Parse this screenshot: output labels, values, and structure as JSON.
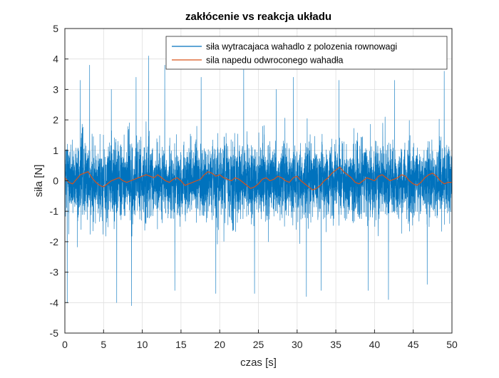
{
  "chart_data": {
    "type": "line",
    "title": "zakłócenie vs reakcja układu",
    "xlabel": "czas [s]",
    "ylabel": "siła [N]",
    "xlim": [
      0,
      50
    ],
    "ylim": [
      -5,
      5
    ],
    "xticks": [
      0,
      5,
      10,
      15,
      20,
      25,
      30,
      35,
      40,
      45,
      50
    ],
    "yticks": [
      -5,
      -4,
      -3,
      -2,
      -1,
      0,
      1,
      2,
      3,
      4,
      5
    ],
    "grid": true,
    "legend_position": "top-right",
    "series": [
      {
        "name": "siła wytracajaca wahadlo z polozenia rownowagi",
        "color": "#0072BD",
        "kind": "noise",
        "time_step": 0.01,
        "typical_band": [
          -1.2,
          1.2
        ],
        "min": -4.1,
        "max": 4.1,
        "peaks": [
          {
            "x": 0.3,
            "y": -4.0
          },
          {
            "x": 2.0,
            "y": 3.3
          },
          {
            "x": 3.2,
            "y": 3.8
          },
          {
            "x": 6.0,
            "y": 3.0
          },
          {
            "x": 6.7,
            "y": -4.0
          },
          {
            "x": 8.6,
            "y": -4.1
          },
          {
            "x": 9.2,
            "y": 3.4
          },
          {
            "x": 10.8,
            "y": 4.1
          },
          {
            "x": 12.9,
            "y": 3.8
          },
          {
            "x": 14.2,
            "y": -3.6
          },
          {
            "x": 17.6,
            "y": 3.4
          },
          {
            "x": 19.5,
            "y": -3.7
          },
          {
            "x": 23.1,
            "y": 3.9
          },
          {
            "x": 24.5,
            "y": -3.7
          },
          {
            "x": 27.3,
            "y": 3.0
          },
          {
            "x": 29.5,
            "y": 3.4
          },
          {
            "x": 31.2,
            "y": -3.8
          },
          {
            "x": 33.1,
            "y": -3.6
          },
          {
            "x": 35.4,
            "y": 3.3
          },
          {
            "x": 39.2,
            "y": -3.6
          },
          {
            "x": 41.8,
            "y": -3.9
          },
          {
            "x": 42.6,
            "y": 3.3
          },
          {
            "x": 46.8,
            "y": -3.4
          },
          {
            "x": 49.0,
            "y": 3.6
          }
        ]
      },
      {
        "name": "sila napedu odwroconego wahadła",
        "color": "#D95319",
        "kind": "line",
        "x": [
          0,
          0.5,
          1,
          1.5,
          2,
          2.5,
          3,
          3.5,
          4,
          4.5,
          5,
          5.5,
          6,
          6.5,
          7,
          7.5,
          8,
          8.5,
          9,
          9.5,
          10,
          10.5,
          11,
          11.5,
          12,
          12.5,
          13,
          13.5,
          14,
          14.5,
          15,
          15.5,
          16,
          16.5,
          17,
          17.5,
          18,
          18.5,
          19,
          19.5,
          20,
          20.5,
          21,
          21.5,
          22,
          22.5,
          23,
          23.5,
          24,
          24.5,
          25,
          25.5,
          26,
          26.5,
          27,
          27.5,
          28,
          28.5,
          29,
          29.5,
          30,
          30.5,
          31,
          31.5,
          32,
          32.5,
          33,
          33.5,
          34,
          34.5,
          35,
          35.5,
          36,
          36.5,
          37,
          37.5,
          38,
          38.5,
          39,
          39.5,
          40,
          40.5,
          41,
          41.5,
          42,
          42.5,
          43,
          43.5,
          44,
          44.5,
          45,
          45.5,
          46,
          46.5,
          47,
          47.5,
          48,
          48.5,
          49,
          49.5,
          50
        ],
        "y": [
          0.1,
          -0.05,
          -0.1,
          0.05,
          0.2,
          0.25,
          0.3,
          0.1,
          -0.05,
          -0.15,
          -0.2,
          -0.1,
          0.0,
          0.05,
          0.1,
          0.0,
          -0.05,
          0.0,
          0.05,
          0.1,
          0.15,
          0.2,
          0.15,
          0.1,
          0.2,
          0.1,
          0.0,
          -0.05,
          0.05,
          0.1,
          0.0,
          -0.15,
          -0.1,
          -0.05,
          0.0,
          0.05,
          0.2,
          0.3,
          0.25,
          0.15,
          0.2,
          0.1,
          0.05,
          0.0,
          0.1,
          0.05,
          -0.05,
          -0.15,
          -0.25,
          -0.2,
          -0.1,
          0.05,
          0.1,
          0.0,
          0.05,
          0.15,
          0.1,
          0.0,
          -0.05,
          0.1,
          0.15,
          0.0,
          -0.1,
          -0.2,
          -0.3,
          -0.25,
          -0.15,
          0.0,
          0.1,
          0.25,
          0.35,
          0.45,
          0.3,
          0.2,
          0.1,
          -0.05,
          -0.1,
          0.0,
          0.1,
          0.05,
          0.0,
          0.15,
          0.2,
          0.1,
          0.0,
          0.05,
          0.1,
          0.2,
          0.15,
          0.0,
          -0.1,
          -0.15,
          -0.05,
          0.1,
          0.2,
          0.25,
          0.15,
          0.0,
          -0.1,
          -0.05,
          -0.05
        ]
      }
    ]
  }
}
